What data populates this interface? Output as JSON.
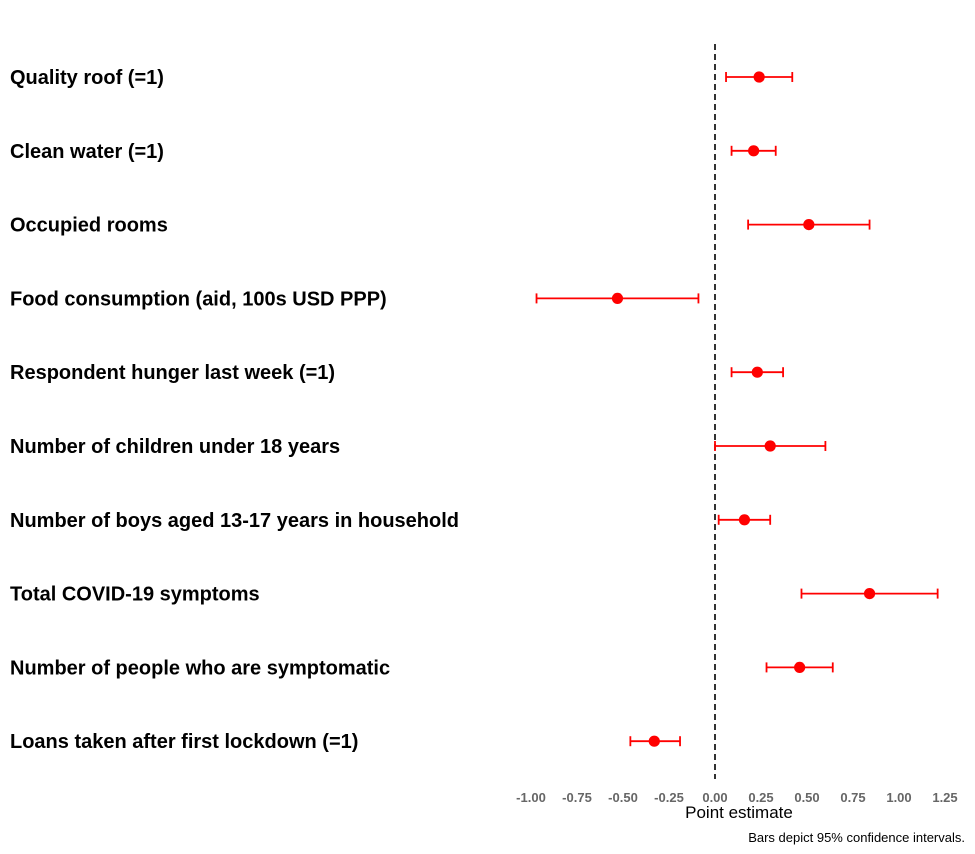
{
  "chart_data": {
    "type": "scatter",
    "subtype": "coefficient-plot-with-error-bars",
    "xlabel": "Point estimate",
    "caption": "Bars depict 95% confidence intervals.",
    "xlim": [
      -1.0,
      1.25
    ],
    "xticks": [
      -1.0,
      -0.75,
      -0.5,
      -0.25,
      0.0,
      0.25,
      0.5,
      0.75,
      1.0,
      1.25
    ],
    "xtick_labels": [
      "-1.00",
      "-0.75",
      "-0.50",
      "-0.25",
      "0.00",
      "0.25",
      "0.50",
      "0.75",
      "1.00",
      "1.25"
    ],
    "reference_line": {
      "x": 0,
      "style": "dashed"
    },
    "colors": {
      "point": "#ff0000",
      "bar": "#ff0000",
      "reference": "#000000",
      "tick": "#666666"
    },
    "grid": false,
    "legend": "none",
    "rows": [
      {
        "label": "Quality roof (=1)",
        "estimate": 0.24,
        "ci_low": 0.06,
        "ci_high": 0.42
      },
      {
        "label": "Clean water (=1)",
        "estimate": 0.21,
        "ci_low": 0.09,
        "ci_high": 0.33
      },
      {
        "label": "Occupied rooms",
        "estimate": 0.51,
        "ci_low": 0.18,
        "ci_high": 0.84
      },
      {
        "label": "Food consumption (aid, 100s USD PPP)",
        "estimate": -0.53,
        "ci_low": -0.97,
        "ci_high": -0.09
      },
      {
        "label": "Respondent hunger last week (=1)",
        "estimate": 0.23,
        "ci_low": 0.09,
        "ci_high": 0.37
      },
      {
        "label": "Number of children under 18 years",
        "estimate": 0.3,
        "ci_low": 0.0,
        "ci_high": 0.6
      },
      {
        "label": "Number of boys aged 13-17 years in household",
        "estimate": 0.16,
        "ci_low": 0.02,
        "ci_high": 0.3
      },
      {
        "label": "Total COVID-19 symptoms",
        "estimate": 0.84,
        "ci_low": 0.47,
        "ci_high": 1.21
      },
      {
        "label": "Number of people who are symptomatic",
        "estimate": 0.46,
        "ci_low": 0.28,
        "ci_high": 0.64
      },
      {
        "label": "Loans taken after first lockdown (=1)",
        "estimate": -0.33,
        "ci_low": -0.46,
        "ci_high": -0.19
      }
    ]
  }
}
